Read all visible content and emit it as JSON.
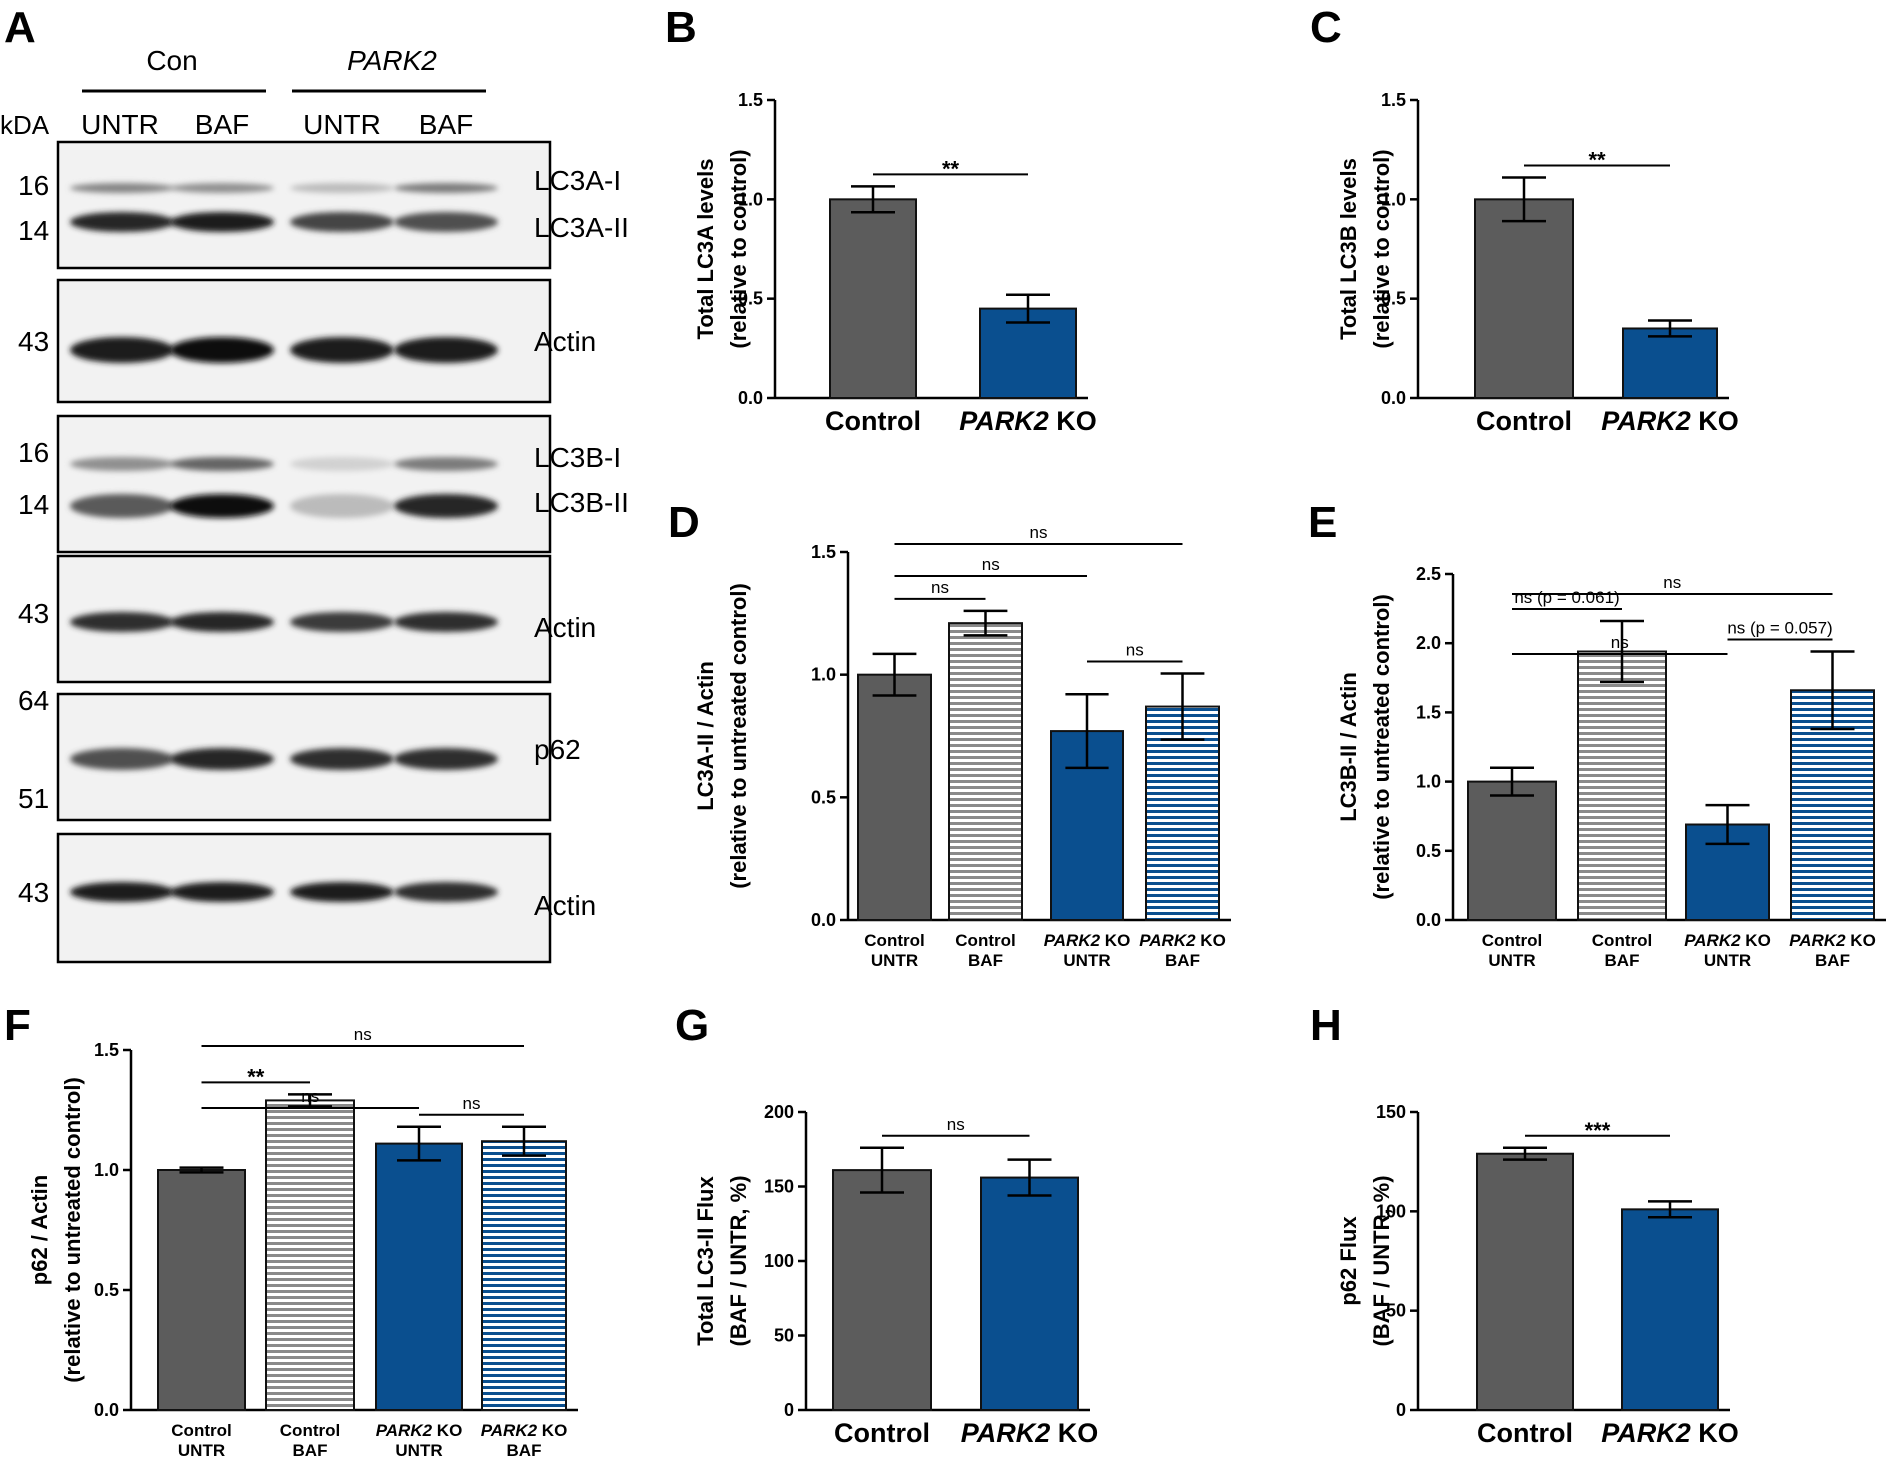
{
  "colors": {
    "control": "#5c5c5c",
    "park2": "#0a4f8f",
    "stripe_control": "#8a8a8a",
    "stripe_park2": "#ffffff"
  },
  "blot": {
    "letter": "A",
    "group_labels": [
      "Con",
      "PARK2"
    ],
    "kda_header": "kDA",
    "lanes": [
      "UNTR",
      "BAF",
      "UNTR",
      "BAF"
    ],
    "panels": [
      {
        "markers": [
          "16",
          "14"
        ],
        "labels": [
          "LC3A-I",
          "LC3A-II"
        ],
        "intensities": [
          [
            0.45,
            0.4,
            0.2,
            0.5
          ],
          [
            0.9,
            0.95,
            0.75,
            0.7
          ]
        ]
      },
      {
        "markers": [
          "43"
        ],
        "labels": [
          "Actin"
        ],
        "intensities": [
          [
            0.95,
            1.0,
            0.95,
            0.95
          ]
        ]
      },
      {
        "markers": [
          "16",
          "14"
        ],
        "labels": [
          "LC3B-I",
          "LC3B-II"
        ],
        "intensities": [
          [
            0.4,
            0.6,
            0.1,
            0.5
          ],
          [
            0.65,
            1.0,
            0.2,
            0.9
          ]
        ]
      },
      {
        "markers": [
          "43"
        ],
        "labels": [
          "Actin"
        ],
        "intensities": [
          [
            0.85,
            0.9,
            0.8,
            0.85
          ]
        ]
      },
      {
        "markers": [
          "64",
          "51"
        ],
        "labels": [
          "p62"
        ],
        "intensities": [
          [
            0.7,
            0.9,
            0.85,
            0.85
          ]
        ]
      },
      {
        "markers": [
          "43"
        ],
        "labels": [
          "Actin"
        ],
        "intensities": [
          [
            0.95,
            0.95,
            0.95,
            0.85
          ]
        ]
      }
    ]
  },
  "chart_data": [
    {
      "letter": "B",
      "type": "bar",
      "categories": [
        "Control",
        "PARK2 KO"
      ],
      "values": [
        1.0,
        0.45
      ],
      "errors": [
        0.065,
        0.07
      ],
      "ylabel_lines": [
        "Total LC3A levels",
        "(relative to control)"
      ],
      "ylim": [
        0,
        1.5
      ],
      "yticks": [
        "0.0",
        "0.5",
        "1.0",
        "1.5"
      ],
      "comparisons": [
        {
          "from": 0,
          "to": 1,
          "label": "**"
        }
      ]
    },
    {
      "letter": "C",
      "type": "bar",
      "categories": [
        "Control",
        "PARK2 KO"
      ],
      "values": [
        1.0,
        0.35
      ],
      "errors": [
        0.11,
        0.04
      ],
      "ylabel_lines": [
        "Total LC3B levels",
        "(relative to control)"
      ],
      "ylim": [
        0,
        1.5
      ],
      "yticks": [
        "0.0",
        "0.5",
        "1.0",
        "1.5"
      ],
      "comparisons": [
        {
          "from": 0,
          "to": 1,
          "label": "**"
        }
      ]
    },
    {
      "letter": "D",
      "type": "bar",
      "categories": [
        [
          "Control",
          "UNTR"
        ],
        [
          "Control",
          "BAF"
        ],
        [
          "PARK2 KO",
          "UNTR"
        ],
        [
          "PARK2 KO",
          "BAF"
        ]
      ],
      "values": [
        1.0,
        1.21,
        0.77,
        0.87
      ],
      "errors": [
        0.085,
        0.05,
        0.15,
        0.135
      ],
      "ylabel_lines": [
        "LC3A-II / Actin",
        "(relative to untreated control)"
      ],
      "ylim": [
        0,
        1.5
      ],
      "yticks": [
        "0.0",
        "0.5",
        "1.0",
        "1.5"
      ],
      "comparisons": [
        {
          "from": 0,
          "to": 3,
          "label": "ns"
        },
        {
          "from": 0,
          "to": 2,
          "label": "ns"
        },
        {
          "from": 0,
          "to": 1,
          "label": "ns"
        },
        {
          "from": 2,
          "to": 3,
          "label": "ns"
        }
      ]
    },
    {
      "letter": "E",
      "type": "bar",
      "categories": [
        [
          "Control",
          "UNTR"
        ],
        [
          "Control",
          "BAF"
        ],
        [
          "PARK2 KO",
          "UNTR"
        ],
        [
          "PARK2 KO",
          "BAF"
        ]
      ],
      "values": [
        1.0,
        1.94,
        0.69,
        1.66
      ],
      "errors": [
        0.1,
        0.22,
        0.14,
        0.28
      ],
      "ylabel_lines": [
        "LC3B-II / Actin",
        "(relative to untreated control)"
      ],
      "ylim": [
        0,
        2.5
      ],
      "yticks": [
        "0.0",
        "0.5",
        "1.0",
        "1.5",
        "2.0",
        "2.5"
      ],
      "comparisons": [
        {
          "from": 0,
          "to": 3,
          "label": "ns"
        },
        {
          "from": 0,
          "to": 2,
          "label": "ns"
        },
        {
          "from": 0,
          "to": 1,
          "label": "ns (p = 0.061)"
        },
        {
          "from": 2,
          "to": 3,
          "label": "ns (p = 0.057)"
        }
      ]
    },
    {
      "letter": "F",
      "type": "bar",
      "categories": [
        [
          "Control",
          "UNTR"
        ],
        [
          "Control",
          "BAF"
        ],
        [
          "PARK2 KO",
          "UNTR"
        ],
        [
          "PARK2 KO",
          "BAF"
        ]
      ],
      "values": [
        1.0,
        1.29,
        1.11,
        1.12
      ],
      "errors": [
        0.01,
        0.025,
        0.07,
        0.06
      ],
      "ylabel_lines": [
        "p62 / Actin",
        "(relative to untreated control)"
      ],
      "ylim": [
        0,
        1.5
      ],
      "yticks": [
        "0.0",
        "0.5",
        "1.0",
        "1.5"
      ],
      "comparisons": [
        {
          "from": 0,
          "to": 3,
          "label": "ns"
        },
        {
          "from": 0,
          "to": 2,
          "label": "ns"
        },
        {
          "from": 0,
          "to": 1,
          "label": "**"
        },
        {
          "from": 2,
          "to": 3,
          "label": "ns"
        }
      ]
    },
    {
      "letter": "G",
      "type": "bar",
      "categories": [
        "Control",
        "PARK2 KO"
      ],
      "values": [
        161,
        156
      ],
      "errors": [
        15,
        12
      ],
      "ylabel_lines": [
        "Total LC3-II Flux",
        "(BAF / UNTR, %)"
      ],
      "ylim": [
        0,
        200
      ],
      "yticks": [
        "0",
        "50",
        "100",
        "150",
        "200"
      ],
      "comparisons": [
        {
          "from": 0,
          "to": 1,
          "label": "ns"
        }
      ]
    },
    {
      "letter": "H",
      "type": "bar",
      "categories": [
        "Control",
        "PARK2 KO"
      ],
      "values": [
        129,
        101
      ],
      "errors": [
        3,
        4
      ],
      "ylabel_lines": [
        "p62 Flux",
        "(BAF / UNTR, %)"
      ],
      "ylim": [
        0,
        150
      ],
      "yticks": [
        "0",
        "50",
        "100",
        "150"
      ],
      "comparisons": [
        {
          "from": 0,
          "to": 1,
          "label": "***"
        }
      ]
    }
  ]
}
